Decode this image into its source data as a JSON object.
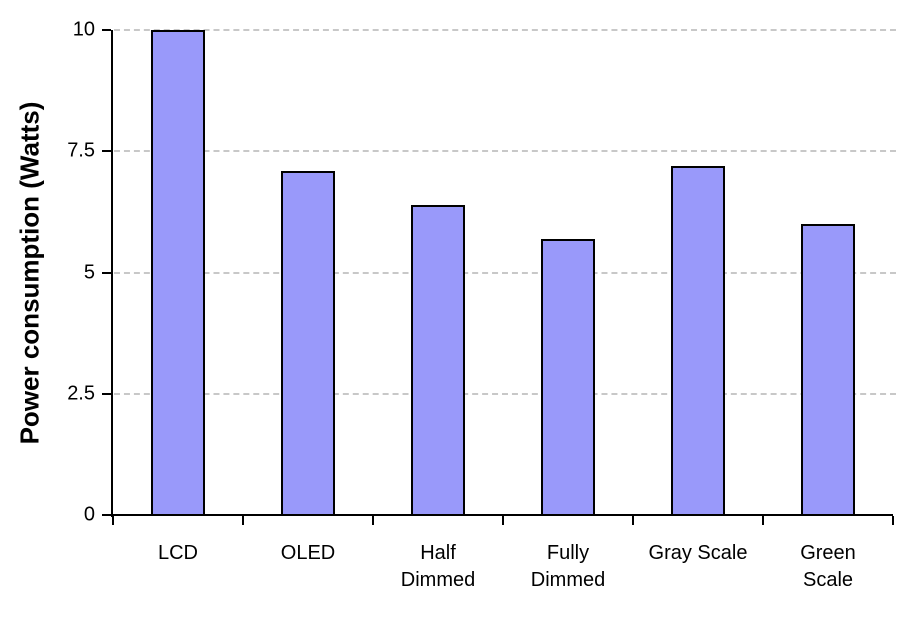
{
  "chart_data": {
    "type": "bar",
    "title": "",
    "xlabel": "",
    "ylabel": "Power consumption (Watts)",
    "categories": [
      "LCD",
      "OLED",
      "Half Dimmed",
      "Fully Dimmed",
      "Gray Scale",
      "Green Scale"
    ],
    "category_label_lines": [
      [
        "LCD"
      ],
      [
        "OLED"
      ],
      [
        "Half",
        "Dimmed"
      ],
      [
        "Fully",
        "Dimmed"
      ],
      [
        "Gray Scale"
      ],
      [
        "Green",
        "Scale"
      ]
    ],
    "values": [
      10,
      7.1,
      6.4,
      5.7,
      7.2,
      6.0
    ],
    "ylim": [
      0,
      10
    ],
    "yticks": [
      0,
      2.5,
      5,
      7.5,
      10
    ],
    "ytick_labels": [
      "0",
      "2.5",
      "5",
      "7.5",
      "10"
    ],
    "grid": "horizontal dashed gridlines at 2.5, 5, 7.5, 10",
    "legend": "none",
    "colors": {
      "bar_fill": "#9999fa",
      "bar_border": "#000000",
      "gridline": "#c8c8c8",
      "axis": "#000000",
      "text": "#000000",
      "background": "#ffffff"
    }
  }
}
